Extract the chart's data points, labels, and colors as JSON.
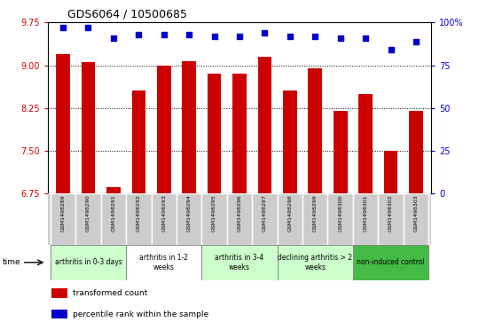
{
  "title": "GDS6064 / 10500685",
  "samples": [
    "GSM1498289",
    "GSM1498290",
    "GSM1498291",
    "GSM1498292",
    "GSM1498293",
    "GSM1498294",
    "GSM1498295",
    "GSM1498296",
    "GSM1498297",
    "GSM1498298",
    "GSM1498299",
    "GSM1498300",
    "GSM1498301",
    "GSM1498302",
    "GSM1498303"
  ],
  "bar_values": [
    9.2,
    9.05,
    6.85,
    8.55,
    9.0,
    9.07,
    8.85,
    8.85,
    9.15,
    8.55,
    8.95,
    8.2,
    8.5,
    7.5,
    8.2
  ],
  "dot_values": [
    97,
    97,
    91,
    93,
    93,
    93,
    92,
    92,
    94,
    92,
    92,
    91,
    91,
    84,
    89
  ],
  "bar_color": "#cc0000",
  "dot_color": "#0000cc",
  "ylim_left": [
    6.75,
    9.75
  ],
  "ylim_right": [
    0,
    100
  ],
  "yticks_left": [
    6.75,
    7.5,
    8.25,
    9.0,
    9.75
  ],
  "yticks_right": [
    0,
    25,
    50,
    75,
    100
  ],
  "ytick_right_labels": [
    "0",
    "25",
    "50",
    "75",
    "100%"
  ],
  "groups": [
    {
      "label": "arthritis in 0-3 days",
      "start": 0,
      "end": 3,
      "color": "#ccffcc"
    },
    {
      "label": "arthritis in 1-2\nweeks",
      "start": 3,
      "end": 6,
      "color": "#ffffff"
    },
    {
      "label": "arthritis in 3-4\nweeks",
      "start": 6,
      "end": 9,
      "color": "#ccffcc"
    },
    {
      "label": "declining arthritis > 2\nweeks",
      "start": 9,
      "end": 12,
      "color": "#ccffcc"
    },
    {
      "label": "non-induced control",
      "start": 12,
      "end": 15,
      "color": "#44bb44"
    }
  ],
  "legend_bar_label": "transformed count",
  "legend_dot_label": "percentile rank within the sample",
  "time_label": "time",
  "bar_color_left": "#cc0000",
  "dot_color_right": "#0000cc",
  "cell_bg": "#cccccc",
  "cell_border": "#ffffff"
}
